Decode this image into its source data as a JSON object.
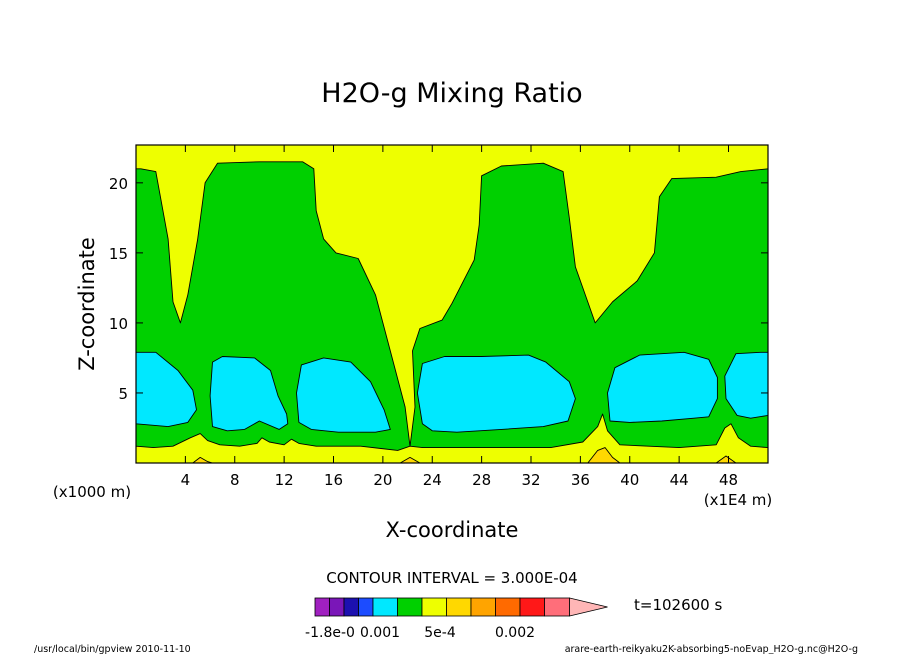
{
  "chart_data": {
    "type": "contour",
    "title": "H2O-g Mixing Ratio",
    "xlabel": "X-coordinate",
    "ylabel": "Z-coordinate",
    "x_unit_note": "(x1E4 m)",
    "y_unit_note": "(x1000 m)",
    "xlim": [
      0,
      51.2
    ],
    "ylim": [
      0,
      22.7
    ],
    "x_ticks": [
      4,
      8,
      12,
      16,
      20,
      24,
      28,
      32,
      36,
      40,
      44,
      48
    ],
    "y_ticks": [
      5,
      10,
      15,
      20
    ],
    "contour_interval_text": "CONTOUR INTERVAL = 3.000E-04",
    "time_label": "t=102600 s",
    "colorbar_labels": [
      "-1.8e-0",
      "0.001",
      "5e-4",
      "0.002"
    ],
    "levels": [
      {
        "name": "lowest",
        "color": "#a020c0"
      },
      {
        "name": "l1",
        "color": "#7a16b8"
      },
      {
        "name": "l2",
        "color": "#1c10b0"
      },
      {
        "name": "l3",
        "color": "#1c4cff"
      },
      {
        "name": "moist-core",
        "color": "#00e8ff"
      },
      {
        "name": "green",
        "color": "#00d000"
      },
      {
        "name": "yellow",
        "color": "#eeff00"
      },
      {
        "name": "l7",
        "color": "#ffd800"
      },
      {
        "name": "l8",
        "color": "#ffa400"
      },
      {
        "name": "l9",
        "color": "#ff6a00"
      },
      {
        "name": "l10",
        "color": "#ff1818"
      },
      {
        "name": "l11",
        "color": "#ff6e7a"
      },
      {
        "name": "highest",
        "color": "#ffb6b6"
      }
    ],
    "background_color": "#eeff00",
    "regions": [
      {
        "level": "green",
        "points": [
          [
            0,
            21
          ],
          [
            0.4,
            21
          ],
          [
            1.6,
            20.8
          ],
          [
            2.6,
            16
          ],
          [
            3,
            11.5
          ],
          [
            3.6,
            10
          ],
          [
            4.2,
            12
          ],
          [
            5,
            16
          ],
          [
            5.6,
            20
          ],
          [
            6.6,
            21.4
          ],
          [
            10,
            21.5
          ],
          [
            13.5,
            21.5
          ],
          [
            14.4,
            21
          ],
          [
            14.6,
            18
          ],
          [
            15.2,
            16
          ],
          [
            16.2,
            15
          ],
          [
            18,
            14.6
          ],
          [
            19.4,
            12
          ],
          [
            20.6,
            8
          ],
          [
            21.8,
            4
          ],
          [
            22.2,
            1.2
          ],
          [
            22.6,
            4
          ],
          [
            22.4,
            8
          ],
          [
            23,
            9.6
          ],
          [
            24.8,
            10.2
          ],
          [
            25.6,
            11.4
          ],
          [
            27.4,
            14.5
          ],
          [
            27.8,
            17
          ],
          [
            28,
            20.5
          ],
          [
            29.6,
            21.2
          ],
          [
            33,
            21.4
          ],
          [
            34.6,
            20.8
          ],
          [
            35.1,
            17.5
          ],
          [
            35.6,
            14
          ],
          [
            37.2,
            10
          ],
          [
            38.6,
            11.5
          ],
          [
            40.6,
            13
          ],
          [
            42,
            15
          ],
          [
            42.4,
            19
          ],
          [
            43.4,
            20.3
          ],
          [
            47,
            20.4
          ],
          [
            49,
            20.8
          ],
          [
            51.2,
            21
          ],
          [
            51.2,
            0.9
          ],
          [
            0,
            0.9
          ]
        ]
      },
      {
        "level": "moist-core",
        "points": [
          [
            0,
            2.8
          ],
          [
            0,
            7.9
          ],
          [
            1.6,
            7.9
          ],
          [
            3.4,
            6.6
          ],
          [
            4.6,
            5.2
          ],
          [
            4.9,
            3.8
          ],
          [
            4.2,
            2.9
          ],
          [
            2.6,
            2.6
          ]
        ]
      },
      {
        "level": "moist-core",
        "points": [
          [
            6.2,
            2.6
          ],
          [
            6,
            4.8
          ],
          [
            6.2,
            7.2
          ],
          [
            7,
            7.6
          ],
          [
            9.6,
            7.5
          ],
          [
            10.9,
            6.6
          ],
          [
            11.5,
            4.8
          ],
          [
            12.2,
            3.5
          ],
          [
            12.3,
            2.8
          ],
          [
            11.6,
            2.4
          ],
          [
            10,
            3
          ],
          [
            8.8,
            2.4
          ],
          [
            7.4,
            2.3
          ]
        ]
      },
      {
        "level": "moist-core",
        "points": [
          [
            13.2,
            2.9
          ],
          [
            13,
            5
          ],
          [
            13.4,
            7
          ],
          [
            15.2,
            7.5
          ],
          [
            17.4,
            7.2
          ],
          [
            19,
            5.8
          ],
          [
            20.1,
            3.8
          ],
          [
            20.6,
            2.4
          ],
          [
            19.4,
            2.2
          ],
          [
            16.4,
            2.2
          ],
          [
            14.2,
            2.4
          ]
        ]
      },
      {
        "level": "moist-core",
        "points": [
          [
            23.2,
            2.8
          ],
          [
            22.8,
            5
          ],
          [
            23.2,
            7.1
          ],
          [
            25,
            7.6
          ],
          [
            28,
            7.6
          ],
          [
            31.8,
            7.7
          ],
          [
            33.2,
            7.2
          ],
          [
            35.1,
            5.8
          ],
          [
            35.6,
            4.6
          ],
          [
            35,
            3
          ],
          [
            33,
            2.6
          ],
          [
            29.6,
            2.4
          ],
          [
            26,
            2.2
          ],
          [
            24,
            2.3
          ]
        ]
      },
      {
        "level": "moist-core",
        "points": [
          [
            38.4,
            3
          ],
          [
            38.2,
            5
          ],
          [
            38.8,
            6.8
          ],
          [
            40.8,
            7.7
          ],
          [
            44.4,
            7.9
          ],
          [
            46.4,
            7.4
          ],
          [
            47.1,
            6.1
          ],
          [
            47.1,
            4.6
          ],
          [
            46.4,
            3.3
          ],
          [
            45.2,
            3.2
          ],
          [
            42.6,
            3
          ],
          [
            40,
            2.9
          ]
        ]
      },
      {
        "level": "moist-core",
        "points": [
          [
            48.7,
            3.4
          ],
          [
            47.8,
            4.6
          ],
          [
            47.7,
            6.2
          ],
          [
            48.6,
            7.8
          ],
          [
            50.6,
            7.9
          ],
          [
            51.2,
            7.9
          ],
          [
            51.2,
            3.4
          ],
          [
            49.8,
            3.2
          ]
        ]
      },
      {
        "level": "yellow",
        "points": [
          [
            0,
            1.2
          ],
          [
            1.4,
            1.1
          ],
          [
            3,
            1.2
          ],
          [
            4.4,
            1.8
          ],
          [
            5.2,
            2.1
          ],
          [
            5.8,
            1.6
          ],
          [
            6.8,
            1.3
          ],
          [
            8.4,
            1.2
          ],
          [
            9.8,
            1.4
          ],
          [
            10.2,
            1.8
          ],
          [
            10.8,
            1.5
          ],
          [
            12,
            1.3
          ],
          [
            12.6,
            1.7
          ],
          [
            13.2,
            1.4
          ],
          [
            14.6,
            1.2
          ],
          [
            18.2,
            1.2
          ],
          [
            21.2,
            0.9
          ],
          [
            22.2,
            1.2
          ],
          [
            23.2,
            1.1
          ],
          [
            28,
            1.1
          ],
          [
            33.6,
            1.1
          ],
          [
            36.2,
            1.5
          ],
          [
            37.4,
            2.6
          ],
          [
            37.8,
            3.5
          ],
          [
            38.2,
            2.3
          ],
          [
            39.2,
            1.3
          ],
          [
            44,
            1.1
          ],
          [
            47,
            1.3
          ],
          [
            47.7,
            2.5
          ],
          [
            48.2,
            2.8
          ],
          [
            48.8,
            1.8
          ],
          [
            49.8,
            1.2
          ],
          [
            51.2,
            1.1
          ],
          [
            51.2,
            0
          ],
          [
            0,
            0
          ]
        ]
      },
      {
        "level": "l7",
        "points": [
          [
            4.6,
            0
          ],
          [
            5.2,
            0.4
          ],
          [
            5.8,
            0.1
          ],
          [
            6.2,
            0
          ]
        ]
      },
      {
        "level": "l7",
        "points": [
          [
            21.4,
            0
          ],
          [
            22.2,
            0.4
          ],
          [
            23,
            0
          ]
        ]
      },
      {
        "level": "l7",
        "points": [
          [
            36.6,
            0
          ],
          [
            37.4,
            0.9
          ],
          [
            38,
            1.1
          ],
          [
            38.6,
            0.4
          ],
          [
            39.2,
            0
          ]
        ]
      },
      {
        "level": "l7",
        "points": [
          [
            47,
            0
          ],
          [
            47.8,
            0.5
          ],
          [
            48.6,
            0
          ]
        ]
      }
    ]
  },
  "footer": {
    "left": "/usr/local/bin/gpview  2010-11-10",
    "right": "arare-earth-reikyaku2K-absorbing5-noEvap_H2O-g.nc@H2O-g"
  }
}
